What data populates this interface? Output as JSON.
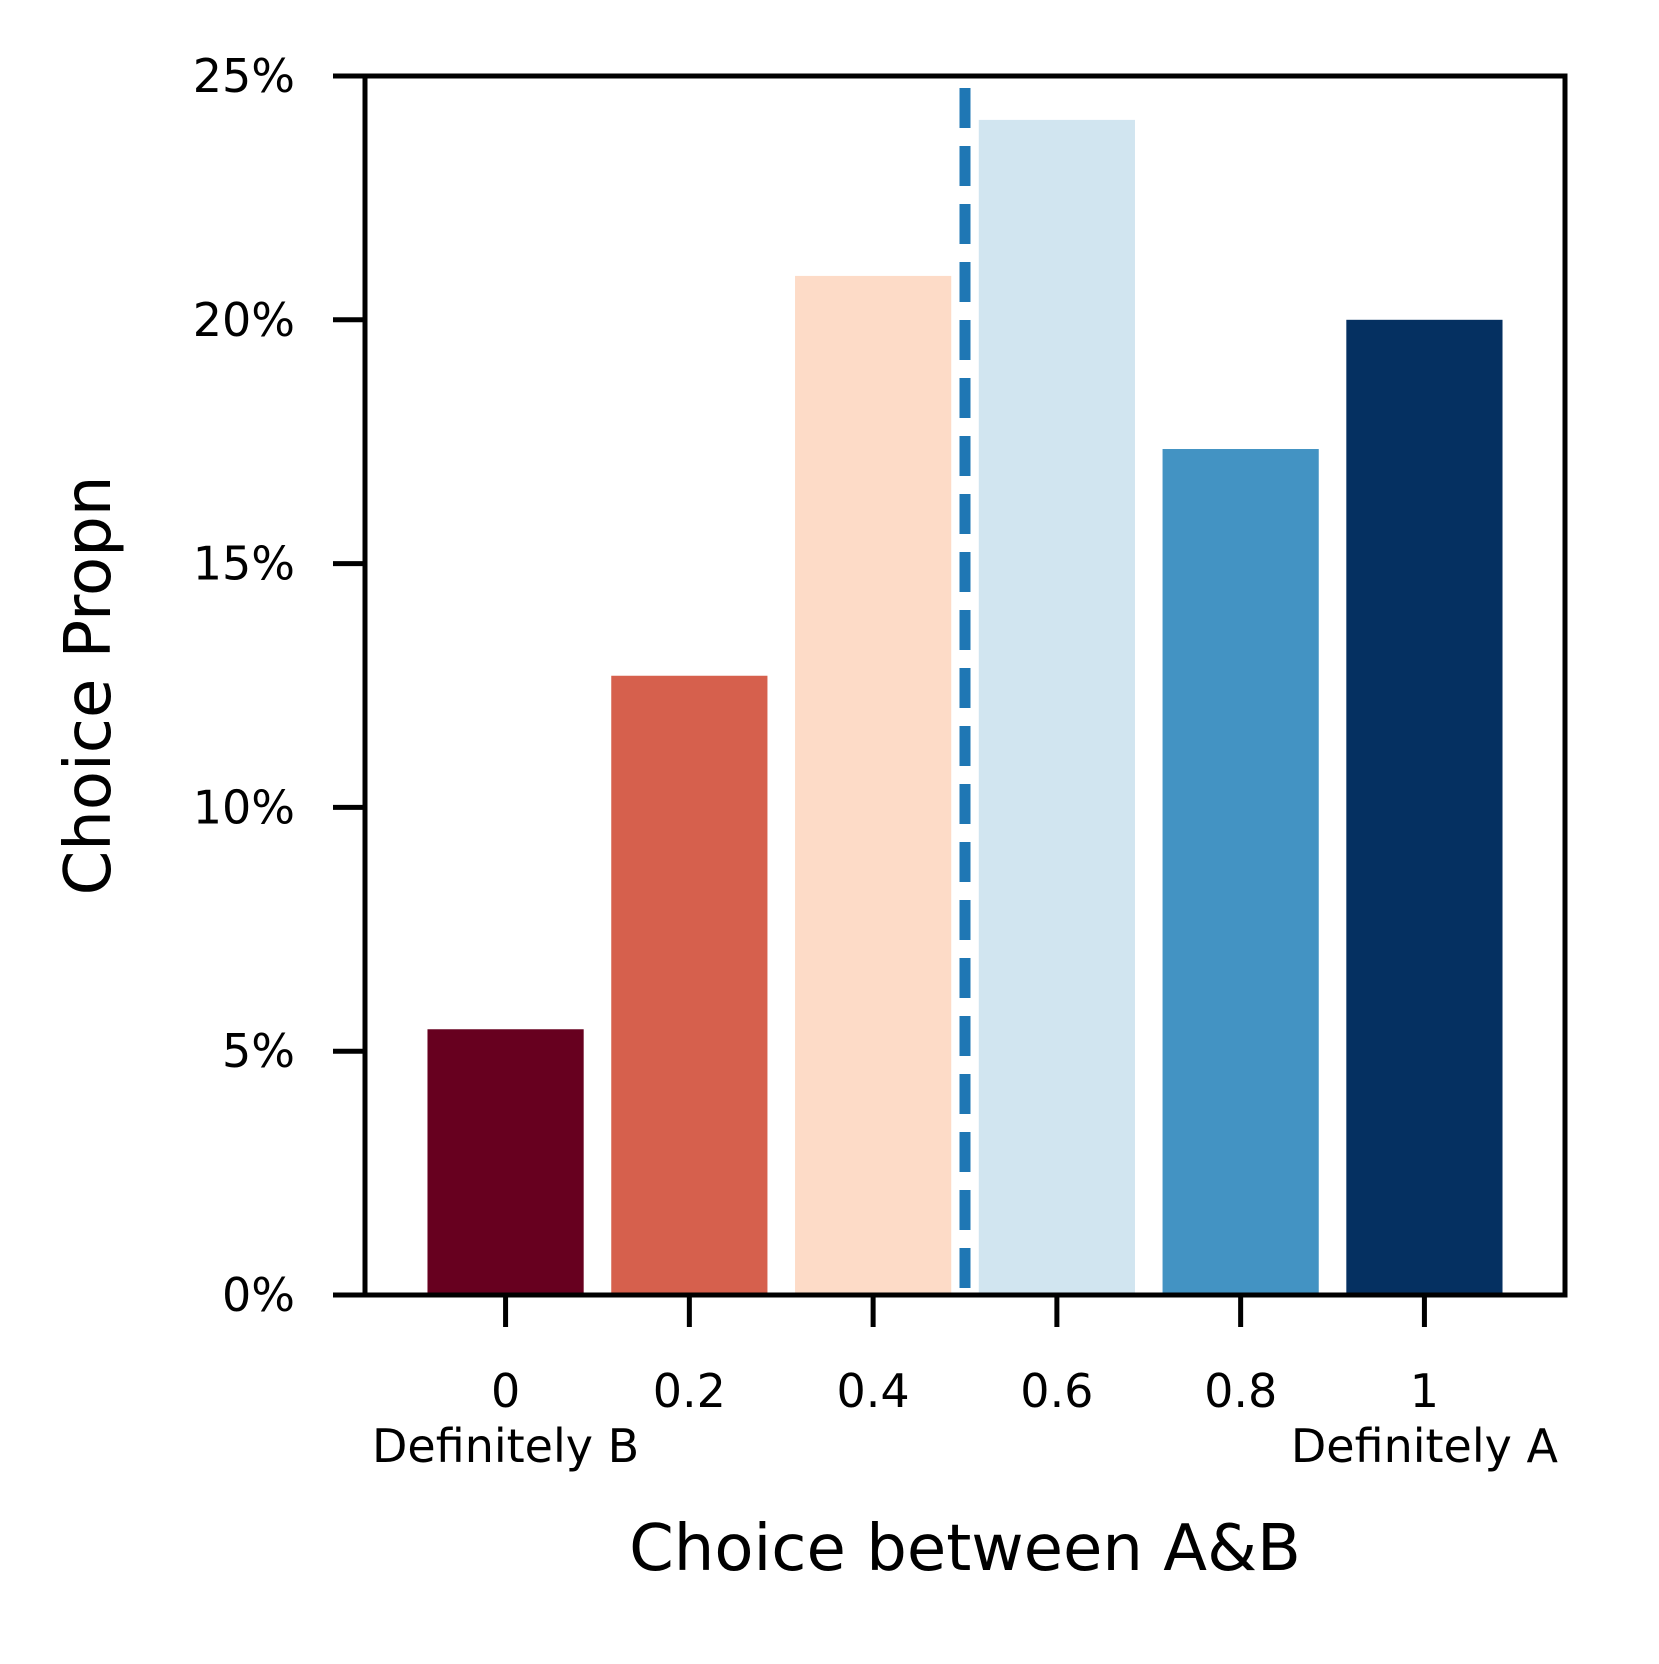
{
  "chart_data": {
    "type": "bar",
    "title": "",
    "xlabel": "Choice between A&B",
    "ylabel": "Choice Propn",
    "categories": [
      "0",
      "0.2",
      "0.4",
      "0.6",
      "0.8",
      "1"
    ],
    "values": [
      5.45,
      12.7,
      20.9,
      24.1,
      17.35,
      20.0
    ],
    "bar_colors": [
      "#67001f",
      "#d6604d",
      "#fddbc7",
      "#d1e5f0",
      "#4393c3",
      "#053061"
    ],
    "ylim": [
      0,
      25
    ],
    "yticks": [
      0,
      5,
      10,
      15,
      20,
      25
    ],
    "ytick_labels": [
      "0%",
      "5%",
      "10%",
      "15%",
      "20%",
      "25%"
    ],
    "x_anchor_labels": {
      "left": "Definitely B",
      "right": "Definitely A"
    },
    "reference_line": {
      "x": 0.5,
      "style": "dashed",
      "color": "#1f77b4"
    },
    "grid": false,
    "legend": "none"
  }
}
